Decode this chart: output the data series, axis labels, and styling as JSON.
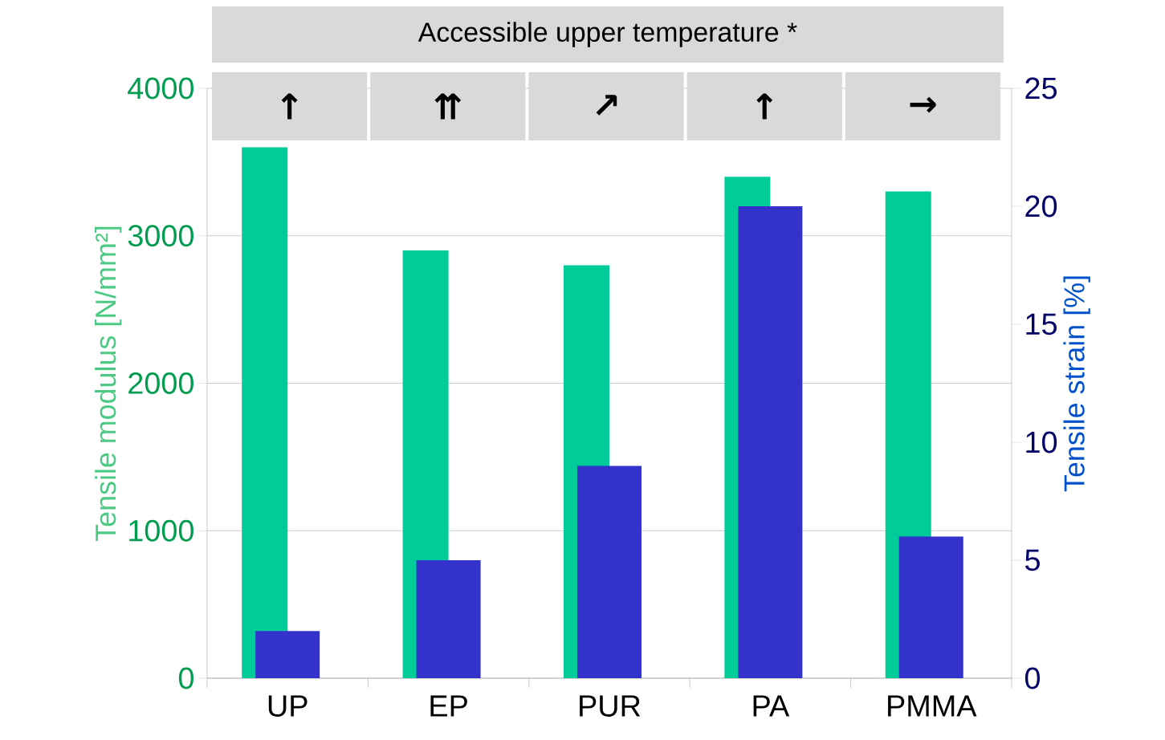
{
  "chart_data": {
    "type": "bar",
    "title": "Accessible upper temperature *",
    "annotations": [
      "↑",
      "⇈",
      "↗",
      "↑",
      "→"
    ],
    "categories": [
      "UP",
      "EP",
      "PUR",
      "PA",
      "PMMA"
    ],
    "series": [
      {
        "color": "#00cc99",
        "values": [
          3600,
          2900,
          2800,
          3400,
          3300
        ]
      },
      {
        "color": "#3333cc",
        "values": [
          2,
          5,
          9,
          20,
          6
        ],
        "axis": "y2"
      }
    ],
    "ylabel": "Tensile modulus [N/mm²]",
    "y2label": "Tensile strain  [%]",
    "ylim": [
      0,
      4000
    ],
    "yticks": [
      0,
      1000,
      2000,
      3000,
      4000
    ],
    "y2lim": [
      0,
      25
    ],
    "y2ticks": [
      0,
      5,
      10,
      15,
      20,
      25
    ],
    "grid": "y"
  }
}
